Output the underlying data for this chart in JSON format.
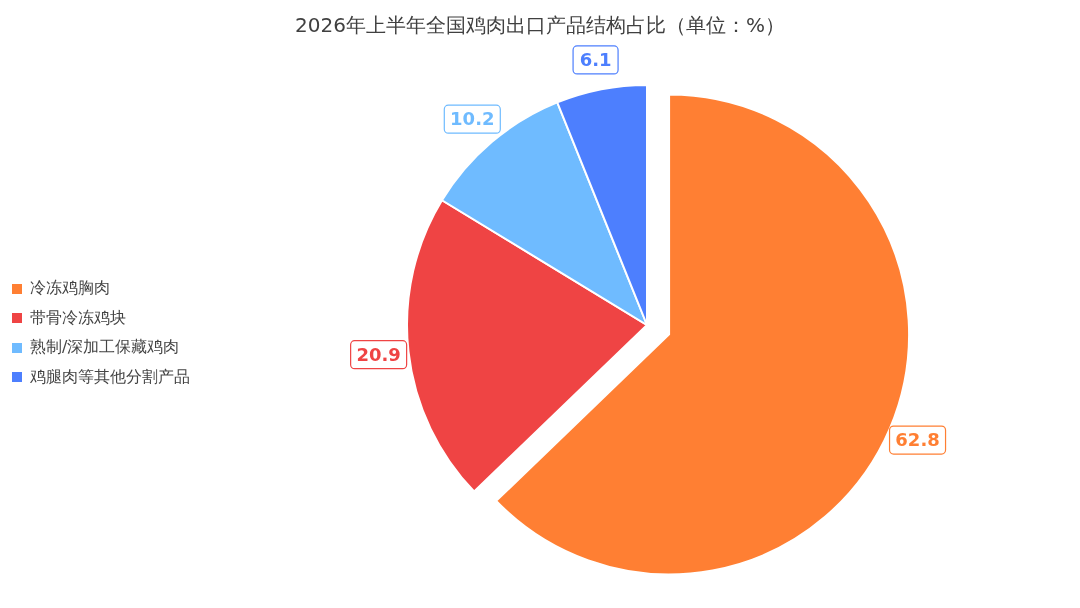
{
  "chart_data": {
    "type": "pie",
    "title": "2026年上半年全国鸡肉出口产品结构占比（单位：%）",
    "categories": [
      "冷冻鸡胸肉",
      "带骨冷冻鸡块",
      "熟制/深加工保藏鸡肉",
      "鸡腿肉等其他分割产品"
    ],
    "values": [
      62.8,
      20.9,
      10.2,
      6.1
    ],
    "colors": [
      "#ff7f33",
      "#ef4444",
      "#6fbbff",
      "#4d7ffe"
    ],
    "data_labels": true,
    "legend": "left"
  }
}
